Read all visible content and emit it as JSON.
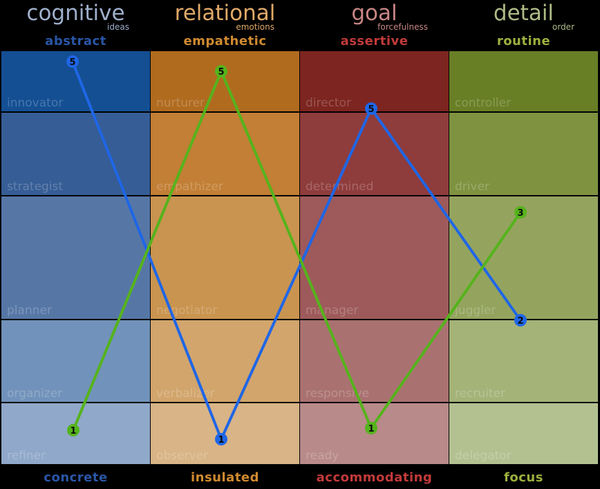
{
  "columns": [
    {
      "title": "cognitive",
      "subtitle": "ideas",
      "top_label": "abstract",
      "bottom_label": "concrete",
      "title_color": "#9fb0cc",
      "label_color": "#2a56a6",
      "cells": [
        {
          "label": "innovator",
          "color": "#144f93"
        },
        {
          "label": "strategist",
          "color": "#365d95"
        },
        {
          "label": "planner",
          "color": "#5677a6"
        },
        {
          "label": "organizer",
          "color": "#7192ba"
        },
        {
          "label": "refiner",
          "color": "#90a8c9"
        }
      ]
    },
    {
      "title": "relational",
      "subtitle": "emotions",
      "top_label": "empathetic",
      "bottom_label": "insulated",
      "title_color": "#e0a968",
      "label_color": "#d08a30",
      "cells": [
        {
          "label": "nurturer",
          "color": "#b06b1f"
        },
        {
          "label": "empathizer",
          "color": "#c27f35"
        },
        {
          "label": "negotiator",
          "color": "#c9944f"
        },
        {
          "label": "verbalizer",
          "color": "#d2a56c"
        },
        {
          "label": "observer",
          "color": "#d8b486"
        }
      ]
    },
    {
      "title": "goal",
      "subtitle": "forcefulness",
      "top_label": "assertive",
      "bottom_label": "accommodating",
      "title_color": "#c98686",
      "label_color": "#c23a3a",
      "cells": [
        {
          "label": "director",
          "color": "#7d2520"
        },
        {
          "label": "determined",
          "color": "#8f3c3c"
        },
        {
          "label": "manager",
          "color": "#9e5a5a"
        },
        {
          "label": "responsive",
          "color": "#aa7171"
        },
        {
          "label": "ready",
          "color": "#b88a89"
        }
      ]
    },
    {
      "title": "detail",
      "subtitle": "order",
      "top_label": "routine",
      "bottom_label": "focus",
      "title_color": "#aebb86",
      "label_color": "#9cb03e",
      "cells": [
        {
          "label": "controller",
          "color": "#687f26"
        },
        {
          "label": "driver",
          "color": "#7e9240"
        },
        {
          "label": "juggler",
          "color": "#94a45e"
        },
        {
          "label": "recruiter",
          "color": "#a4b378"
        },
        {
          "label": "delegator",
          "color": "#b3c191"
        }
      ]
    }
  ],
  "chart_data": {
    "type": "line",
    "categories": [
      "cognitive",
      "relational",
      "goal",
      "detail"
    ],
    "ylim": [
      0,
      6
    ],
    "series": [
      {
        "color": "#1f66e6",
        "values": [
          5,
          1,
          5,
          2
        ],
        "point_labels": [
          "5",
          "1",
          "5",
          "2"
        ]
      },
      {
        "color": "#55b31c",
        "values": [
          1,
          5,
          1,
          3
        ],
        "point_labels": [
          "1",
          "5",
          "1",
          "3"
        ]
      }
    ]
  }
}
